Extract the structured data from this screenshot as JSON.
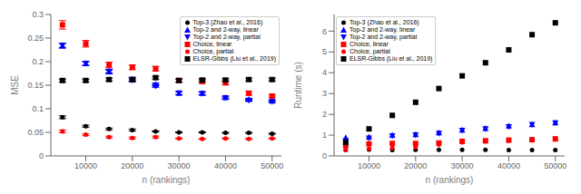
{
  "chart_data": [
    {
      "type": "scatter",
      "xlabel": "n (rankings)",
      "ylabel": "MSE",
      "x": [
        5000,
        10000,
        15000,
        20000,
        25000,
        30000,
        35000,
        40000,
        45000,
        50000
      ],
      "xlim": [
        2500,
        52000
      ],
      "xticks": [
        10000,
        20000,
        30000,
        40000,
        50000
      ],
      "ylim": [
        0.0,
        0.3
      ],
      "yticks": [
        0,
        0.05,
        0.1,
        0.15,
        0.2,
        0.25,
        0.3
      ],
      "legend": "upper right",
      "series": [
        {
          "name": "Top-3 (Zhao et al., 2016)",
          "color": "black",
          "marker": "dot",
          "values": [
            0.082,
            0.063,
            0.057,
            0.055,
            0.052,
            0.05,
            0.05,
            0.049,
            0.049,
            0.047
          ],
          "errors": [
            0.003,
            0.002,
            0.002,
            0.002,
            0.001,
            0.001,
            0.001,
            0.001,
            0.001,
            0.001
          ]
        },
        {
          "name": "Top-2 and 2-way, linear",
          "color": "blue",
          "marker": "triangle_up",
          "values": [
            0.234,
            0.196,
            0.18,
            0.163,
            0.152,
            0.133,
            0.133,
            0.124,
            0.12,
            0.117
          ],
          "errors": [
            0.005,
            0.004,
            0.004,
            0.004,
            0.003,
            0.003,
            0.003,
            0.003,
            0.002,
            0.002
          ]
        },
        {
          "name": "Top-2 and 2-way, partial",
          "color": "blue",
          "marker": "triangle_down",
          "values": [
            0.234,
            0.196,
            0.178,
            0.16,
            0.148,
            0.133,
            0.132,
            0.123,
            0.118,
            0.115
          ],
          "errors": [
            0.005,
            0.004,
            0.004,
            0.003,
            0.003,
            0.003,
            0.003,
            0.002,
            0.002,
            0.002
          ]
        },
        {
          "name": "Choice, linear",
          "color": "red",
          "marker": "square",
          "values": [
            0.278,
            0.238,
            0.193,
            0.188,
            0.185,
            0.16,
            0.158,
            0.155,
            0.133,
            0.127
          ],
          "errors": [
            0.009,
            0.007,
            0.006,
            0.005,
            0.005,
            0.004,
            0.004,
            0.004,
            0.004,
            0.003
          ]
        },
        {
          "name": "Choice, partial",
          "color": "red",
          "marker": "dot",
          "values": [
            0.052,
            0.045,
            0.04,
            0.038,
            0.04,
            0.037,
            0.036,
            0.037,
            0.036,
            0.037
          ],
          "errors": [
            0.003,
            0.002,
            0.002,
            0.002,
            0.002,
            0.001,
            0.001,
            0.001,
            0.001,
            0.001
          ]
        },
        {
          "name": "ELSR-Gibbs (Liu et al., 2019)",
          "color": "black",
          "marker": "square",
          "values": [
            0.16,
            0.16,
            0.162,
            0.162,
            0.166,
            0.16,
            0.161,
            0.161,
            0.162,
            0.162
          ],
          "errors": [
            0.003,
            0.003,
            0.003,
            0.003,
            0.003,
            0.003,
            0.003,
            0.003,
            0.003,
            0.003
          ]
        }
      ]
    },
    {
      "type": "scatter",
      "xlabel": "n (rankings)",
      "ylabel": "Runtime (s)",
      "x": [
        5000,
        10000,
        15000,
        20000,
        25000,
        30000,
        35000,
        40000,
        45000,
        50000
      ],
      "xlim": [
        2500,
        52000
      ],
      "xticks": [
        10000,
        20000,
        30000,
        40000,
        50000
      ],
      "ylim": [
        0.0,
        6.8
      ],
      "yticks": [
        0,
        1,
        2,
        3,
        4,
        5,
        6
      ],
      "legend": "upper left",
      "series": [
        {
          "name": "Top-3 (Zhao et al., 2016)",
          "color": "black",
          "marker": "dot",
          "values": [
            0.28,
            0.3,
            0.28,
            0.29,
            0.29,
            0.29,
            0.29,
            0.28,
            0.28,
            0.28
          ]
        },
        {
          "name": "Top-2 and 2-way, linear",
          "color": "blue",
          "marker": "triangle_up",
          "values": [
            0.88,
            0.92,
            1.0,
            1.04,
            1.12,
            1.25,
            1.33,
            1.45,
            1.52,
            1.6
          ]
        },
        {
          "name": "Top-2 and 2-way, partial",
          "color": "blue",
          "marker": "triangle_down",
          "values": [
            0.72,
            0.85,
            0.96,
            1.0,
            1.08,
            1.22,
            1.3,
            1.4,
            1.5,
            1.58
          ]
        },
        {
          "name": "Choice, linear",
          "color": "red",
          "marker": "square",
          "values": [
            0.5,
            0.58,
            0.6,
            0.6,
            0.62,
            0.7,
            0.73,
            0.76,
            0.78,
            0.82
          ]
        },
        {
          "name": "Choice, partial",
          "color": "red",
          "marker": "dot",
          "values": [
            0.28,
            0.35,
            0.38,
            0.42,
            0.55,
            0.65,
            0.7,
            0.74,
            0.75,
            0.8
          ]
        },
        {
          "name": "ELSR-Gibbs (Liu et al., 2019)",
          "color": "black",
          "marker": "square",
          "values": [
            0.65,
            1.3,
            1.95,
            2.58,
            3.24,
            3.85,
            4.48,
            5.1,
            5.83,
            6.4
          ]
        }
      ]
    }
  ]
}
